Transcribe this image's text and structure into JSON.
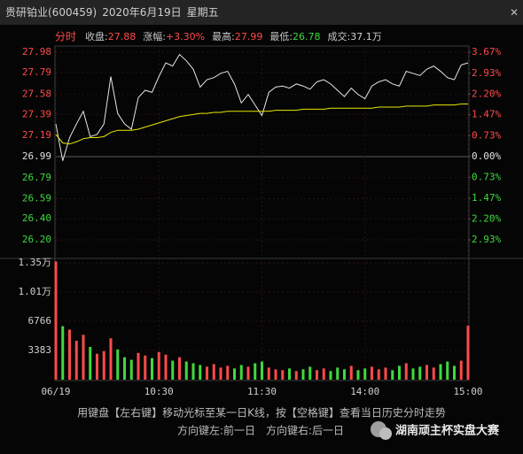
{
  "window": {
    "title": "贵研铂业(600459)",
    "date": "2020年6月19日",
    "weekday": "星期五",
    "close": "×"
  },
  "info": {
    "mode": "分时",
    "fields": [
      {
        "label": "收盘:",
        "value": "27.88"
      },
      {
        "label": "涨幅:",
        "value": "+3.30%"
      },
      {
        "label": "最高:",
        "value": "27.99"
      },
      {
        "label": "最低:",
        "value": "26.78"
      },
      {
        "label": "成交:",
        "value": "37.1万"
      }
    ]
  },
  "chart_data": [
    {
      "type": "line",
      "x": [
        0,
        4,
        8,
        12,
        16,
        20,
        24,
        28,
        32,
        36,
        40,
        44,
        48,
        52,
        56,
        60,
        64,
        68,
        72,
        76,
        80,
        84,
        88,
        92,
        96,
        100,
        104,
        108,
        112,
        116,
        120,
        124,
        128,
        132,
        136,
        140,
        144,
        148,
        152,
        156,
        160,
        164,
        168,
        172,
        176,
        180,
        184,
        188,
        192,
        196,
        200,
        204,
        208,
        212,
        216,
        220,
        224,
        228,
        232,
        236,
        240
      ],
      "series": [
        {
          "color": "#e6e6e6",
          "values": [
            27.3,
            26.95,
            27.17,
            27.3,
            27.42,
            27.18,
            27.2,
            27.3,
            27.75,
            27.4,
            27.3,
            27.25,
            27.55,
            27.62,
            27.6,
            27.75,
            27.88,
            27.85,
            27.96,
            27.9,
            27.82,
            27.65,
            27.72,
            27.74,
            27.78,
            27.8,
            27.68,
            27.5,
            27.58,
            27.48,
            27.38,
            27.6,
            27.65,
            27.66,
            27.64,
            27.68,
            27.66,
            27.63,
            27.7,
            27.72,
            27.68,
            27.62,
            27.56,
            27.64,
            27.58,
            27.54,
            27.66,
            27.7,
            27.72,
            27.68,
            27.66,
            27.8,
            27.78,
            27.76,
            27.82,
            27.85,
            27.8,
            27.74,
            27.72,
            27.86,
            27.88
          ]
        },
        {
          "color": "#e8e800",
          "values": [
            27.2,
            27.12,
            27.11,
            27.13,
            27.16,
            27.17,
            27.17,
            27.18,
            27.22,
            27.24,
            27.24,
            27.24,
            27.25,
            27.27,
            27.29,
            27.31,
            27.33,
            27.35,
            27.37,
            27.38,
            27.39,
            27.4,
            27.4,
            27.41,
            27.41,
            27.42,
            27.42,
            27.42,
            27.42,
            27.42,
            27.42,
            27.42,
            27.43,
            27.43,
            27.43,
            27.43,
            27.44,
            27.44,
            27.44,
            27.44,
            27.45,
            27.45,
            27.45,
            27.45,
            27.45,
            27.45,
            27.45,
            27.46,
            27.46,
            27.46,
            27.46,
            27.47,
            27.47,
            27.47,
            27.47,
            27.48,
            27.48,
            27.48,
            27.48,
            27.49,
            27.49
          ]
        }
      ],
      "xlim": [
        0,
        240
      ],
      "ylim": [
        26.04,
        28.04
      ],
      "yticks": [
        27.98,
        27.79,
        27.58,
        27.39,
        27.19,
        26.99,
        26.79,
        26.59,
        {
          "value": 26.4,
          "label": "26.40"
        },
        {
          "value": 26.2,
          "label": "26.20"
        }
      ],
      "y2lim": [
        -3.52,
        3.89
      ],
      "y2ticks": [
        {
          "value": 3.67,
          "label": "3.67%"
        },
        {
          "value": 2.93,
          "label": "2.93%"
        },
        {
          "value": 2.2,
          "label": "2.20%"
        },
        {
          "value": 1.47,
          "label": "1.47%"
        },
        {
          "value": 0.73,
          "label": "0.73%"
        },
        {
          "value": 0,
          "label": "0.00%"
        },
        {
          "value": -0.73,
          "label": "0.73%"
        },
        {
          "value": -1.47,
          "label": "1.47%"
        },
        {
          "value": -2.2,
          "label": "2.20%"
        },
        {
          "value": -2.93,
          "label": "2.93%"
        }
      ],
      "up_color": "#ff4a4a",
      "down_color": "#3fd93f",
      "flat_color": "#e0e0e0"
    },
    {
      "type": "bar",
      "x": [
        0,
        4,
        8,
        12,
        16,
        20,
        24,
        28,
        32,
        36,
        40,
        44,
        48,
        52,
        56,
        60,
        64,
        68,
        72,
        76,
        80,
        84,
        88,
        92,
        96,
        100,
        104,
        108,
        112,
        116,
        120,
        124,
        128,
        132,
        136,
        140,
        144,
        148,
        152,
        156,
        160,
        164,
        168,
        172,
        176,
        180,
        184,
        188,
        192,
        196,
        200,
        204,
        208,
        212,
        216,
        220,
        224,
        228,
        232,
        236,
        240
      ],
      "values": [
        13700,
        6200,
        5800,
        4500,
        5200,
        3800,
        3000,
        3300,
        4800,
        3500,
        2600,
        2300,
        3100,
        2800,
        2500,
        3200,
        2900,
        2200,
        2600,
        2100,
        1900,
        1700,
        1500,
        1800,
        1400,
        1600,
        1300,
        1700,
        1500,
        1900,
        2100,
        1400,
        1200,
        1100,
        1300,
        1000,
        1200,
        1500,
        1100,
        1300,
        1000,
        1400,
        1200,
        1600,
        1100,
        1300,
        1500,
        1200,
        1400,
        1100,
        1600,
        1900,
        1300,
        1500,
        1700,
        1400,
        1800,
        2100,
        1600,
        2200,
        6250
      ],
      "xlim": [
        0,
        240
      ],
      "xticks": [
        {
          "value": 0,
          "label": "06/19"
        },
        {
          "value": 60,
          "label": "10:30"
        },
        {
          "value": 120,
          "label": "11:30"
        },
        {
          "value": 180,
          "label": "14:00"
        },
        {
          "value": 240,
          "label": "15:00"
        }
      ],
      "ylim": [
        0,
        13740
      ],
      "yticks": [
        {
          "value": 13532,
          "label": "1.35万"
        },
        {
          "value": 10149,
          "label": "1.01万"
        },
        6766,
        3383
      ]
    }
  ],
  "footer": {
    "hint": "用键盘【左右键】移动光标至某一日K线，按【空格键】查看当日历史分时走势",
    "keys": [
      "方向键左:前一日",
      "方向键右:后一日"
    ]
  },
  "watermark": "湖南顽主杯实盘大赛"
}
